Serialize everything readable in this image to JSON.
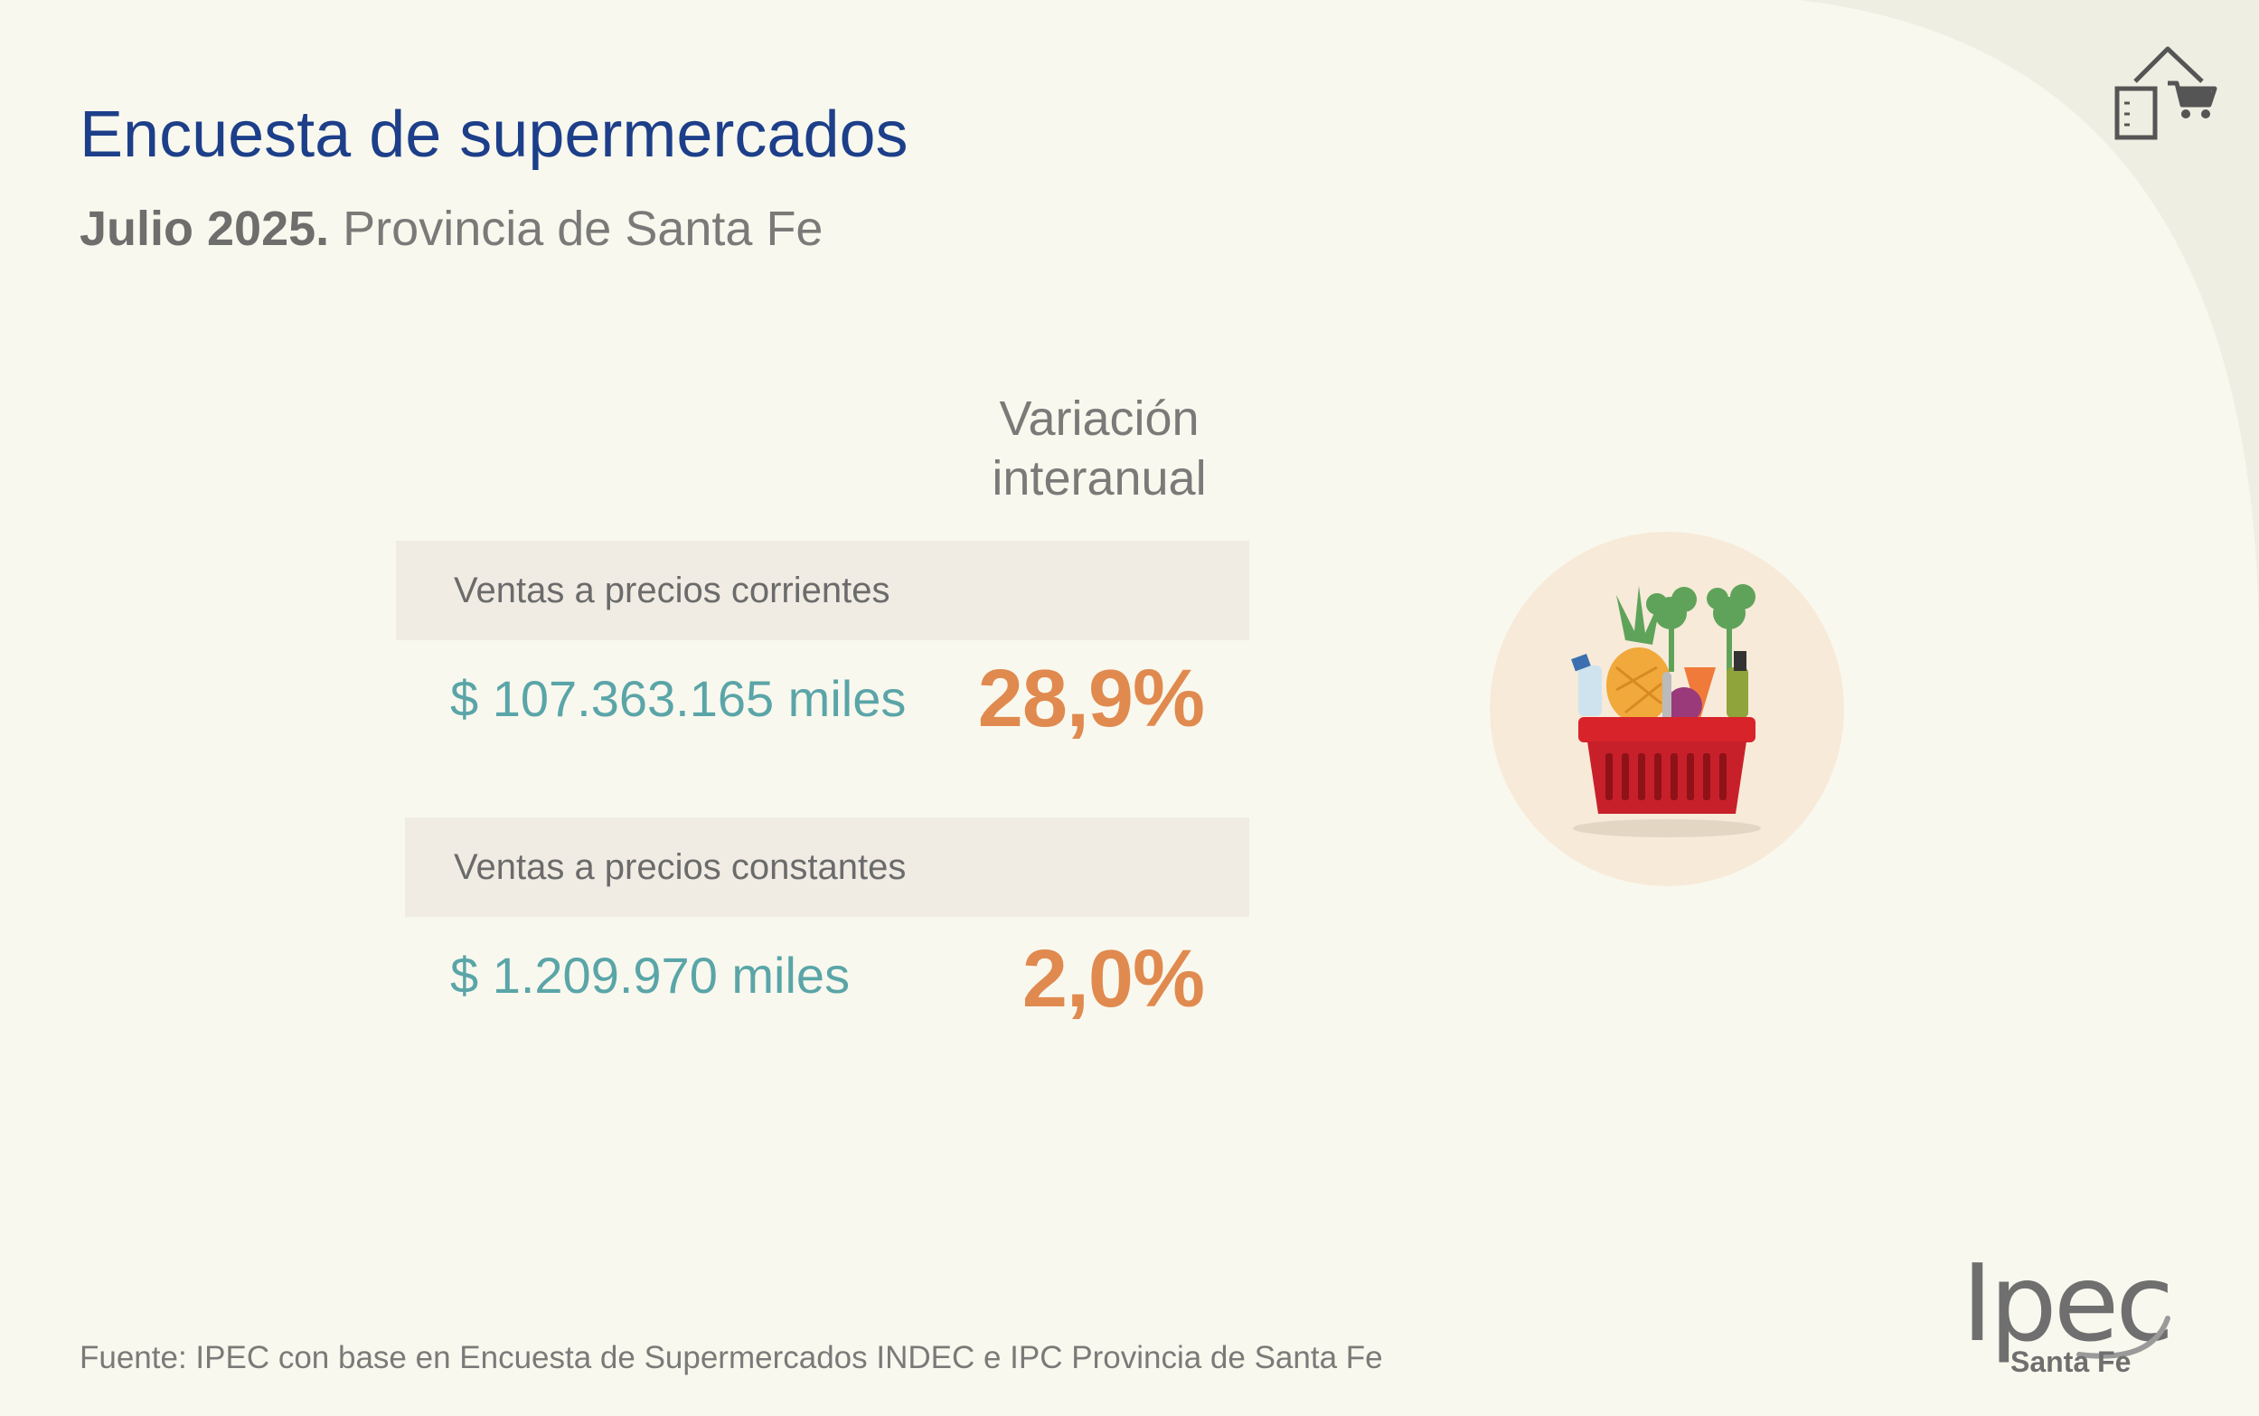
{
  "header": {
    "title": "Encuesta de supermercados",
    "subtitle_bold": "Julio 2025.",
    "subtitle_rest": " Provincia de Santa Fe"
  },
  "table": {
    "column_header_line1": "Variación",
    "column_header_line2": "interanual",
    "rows": [
      {
        "label": "Ventas a precios corrientes",
        "amount": "$ 107.363.165 miles",
        "variation": "28,9%"
      },
      {
        "label": "Ventas a precios constantes",
        "amount": "$ 1.209.970 miles",
        "variation": "2,0%"
      }
    ]
  },
  "footer": {
    "source": "Fuente: IPEC con base en Encuesta de Supermercados INDEC e IPC Provincia de Santa Fe"
  },
  "logo": {
    "main": "Ipec",
    "sub": "Santa Fe"
  },
  "icons": {
    "top_right": "home-shopping-cart-icon",
    "illustration": "grocery-basket-icon"
  },
  "colors": {
    "background": "#f9f8ee",
    "title": "#1d3f8a",
    "amount": "#5aa5a8",
    "variation": "#e08a4f",
    "band": "#f0ece4",
    "circle": "#f7ead9"
  }
}
